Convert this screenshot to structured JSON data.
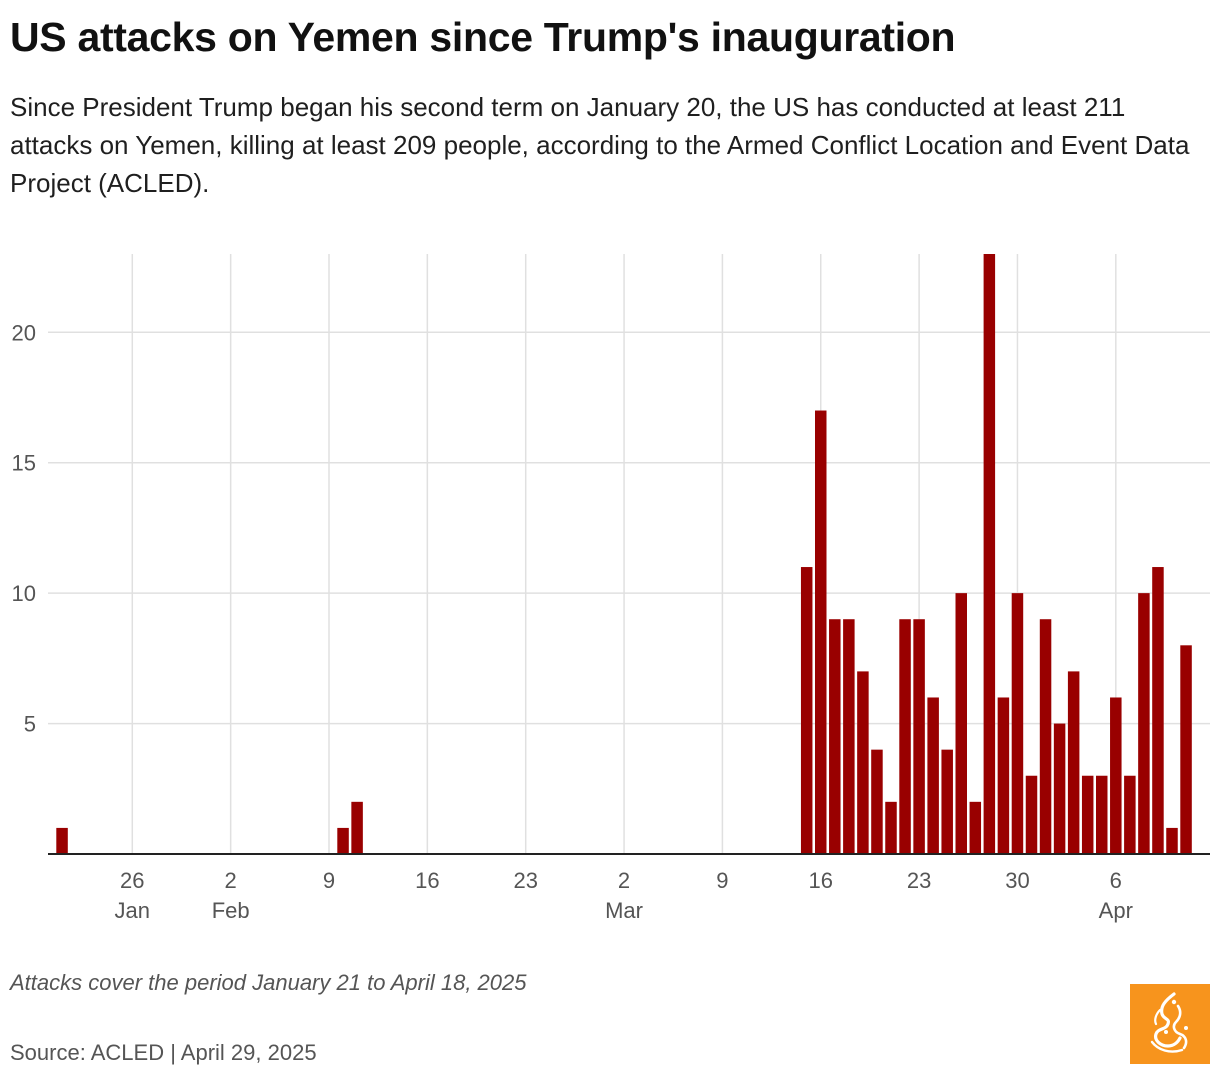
{
  "header": {
    "title": "US attacks on Yemen since Trump's inauguration",
    "subtitle": "Since President Trump began his second term on January 20, the US has conducted at least 211 attacks on Yemen, killing at least 209 people, according to the Armed Conflict Location and Event Data Project (ACLED)."
  },
  "footer": {
    "note": "Attacks cover the period January 21 to April 18, 2025",
    "source": "Source: ACLED | April 29, 2025"
  },
  "colors": {
    "bar": "#990000",
    "grid": "#e0e0e0",
    "axis": "#222222",
    "tick_text": "#555555",
    "logo_bg": "#f7941d"
  },
  "chart_data": {
    "type": "bar",
    "title": "US attacks on Yemen since Trump's inauguration",
    "xlabel": "",
    "ylabel": "",
    "ylim": [
      0,
      23
    ],
    "yticks": [
      5,
      10,
      15,
      20
    ],
    "grid": true,
    "x_domain": {
      "start_day": 20,
      "end_day": 108,
      "unit": "day of year 2025"
    },
    "xticks": [
      {
        "day": 26,
        "label": "26",
        "month": "Jan"
      },
      {
        "day": 33,
        "label": "2",
        "month": "Feb"
      },
      {
        "day": 40,
        "label": "9",
        "month": ""
      },
      {
        "day": 47,
        "label": "16",
        "month": ""
      },
      {
        "day": 54,
        "label": "23",
        "month": ""
      },
      {
        "day": 61,
        "label": "2",
        "month": "Mar"
      },
      {
        "day": 68,
        "label": "9",
        "month": ""
      },
      {
        "day": 75,
        "label": "16",
        "month": ""
      },
      {
        "day": 82,
        "label": "23",
        "month": ""
      },
      {
        "day": 89,
        "label": "30",
        "month": ""
      },
      {
        "day": 96,
        "label": "6",
        "month": "Apr"
      }
    ],
    "series": [
      {
        "name": "Attacks",
        "points": [
          {
            "date": "2025-01-21",
            "day": 21,
            "value": 1
          },
          {
            "date": "2025-02-10",
            "day": 41,
            "value": 1
          },
          {
            "date": "2025-02-11",
            "day": 42,
            "value": 2
          },
          {
            "date": "2025-03-15",
            "day": 74,
            "value": 11
          },
          {
            "date": "2025-03-16",
            "day": 75,
            "value": 17
          },
          {
            "date": "2025-03-17",
            "day": 76,
            "value": 9
          },
          {
            "date": "2025-03-18",
            "day": 77,
            "value": 9
          },
          {
            "date": "2025-03-19",
            "day": 78,
            "value": 7
          },
          {
            "date": "2025-03-20",
            "day": 79,
            "value": 4
          },
          {
            "date": "2025-03-21",
            "day": 80,
            "value": 2
          },
          {
            "date": "2025-03-22",
            "day": 81,
            "value": 9
          },
          {
            "date": "2025-03-23",
            "day": 82,
            "value": 9
          },
          {
            "date": "2025-03-24",
            "day": 83,
            "value": 6
          },
          {
            "date": "2025-03-25",
            "day": 84,
            "value": 4
          },
          {
            "date": "2025-03-26",
            "day": 85,
            "value": 10
          },
          {
            "date": "2025-03-27",
            "day": 86,
            "value": 2
          },
          {
            "date": "2025-03-28",
            "day": 87,
            "value": 23
          },
          {
            "date": "2025-03-29",
            "day": 88,
            "value": 6
          },
          {
            "date": "2025-03-30",
            "day": 89,
            "value": 10
          },
          {
            "date": "2025-03-31",
            "day": 90,
            "value": 3
          },
          {
            "date": "2025-04-01",
            "day": 91,
            "value": 9
          },
          {
            "date": "2025-04-02",
            "day": 92,
            "value": 5
          },
          {
            "date": "2025-04-03",
            "day": 93,
            "value": 7
          },
          {
            "date": "2025-04-04",
            "day": 94,
            "value": 3
          },
          {
            "date": "2025-04-05",
            "day": 95,
            "value": 3
          },
          {
            "date": "2025-04-06",
            "day": 96,
            "value": 6
          },
          {
            "date": "2025-04-07",
            "day": 97,
            "value": 3
          },
          {
            "date": "2025-04-08",
            "day": 98,
            "value": 10
          },
          {
            "date": "2025-04-09",
            "day": 99,
            "value": 11
          },
          {
            "date": "2025-04-10",
            "day": 100,
            "value": 1
          },
          {
            "date": "2025-04-11",
            "day": 101,
            "value": 8
          }
        ]
      }
    ]
  }
}
